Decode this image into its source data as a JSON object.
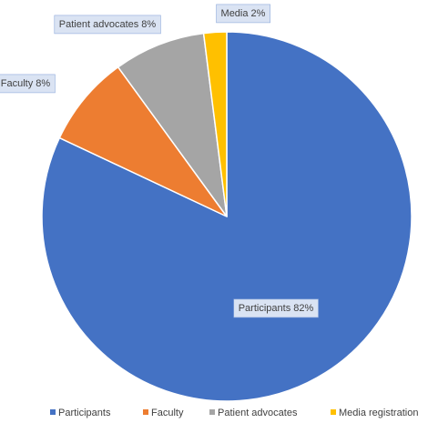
{
  "chart_data": {
    "type": "pie",
    "categories": [
      "Participants",
      "Faculty",
      "Patient advocates",
      "Media registration"
    ],
    "values": [
      82,
      8,
      8,
      2
    ],
    "value_labels": [
      "Participants 82%",
      "Faculty 8%",
      "Patient advocates 8%",
      "Media 2%"
    ],
    "colors": [
      "#4472c4",
      "#ed7d31",
      "#a5a5a5",
      "#ffc000"
    ],
    "legend": "bottom"
  }
}
